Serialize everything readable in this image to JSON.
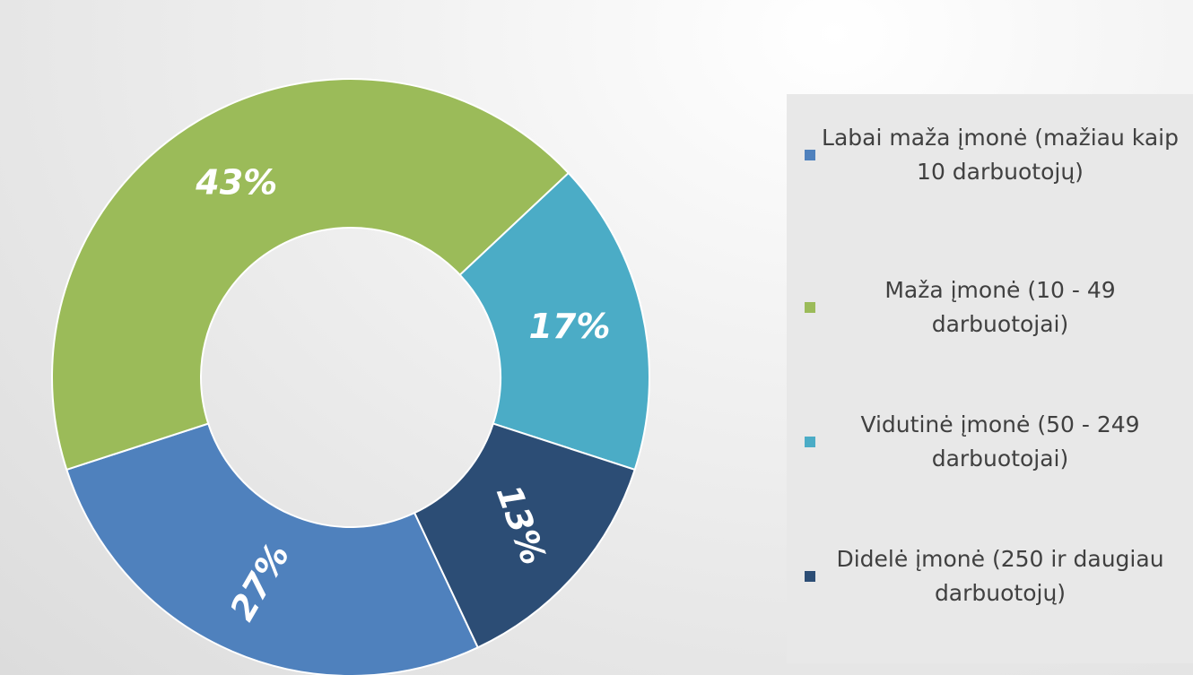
{
  "chart_data": {
    "type": "donut",
    "categories": [
      "Labai maža įmonė (mažiau kaip 10 darbuotojų)",
      "Maža įmonė (10 - 49 darbuotojai)",
      "Vidutinė įmonė (50 - 249 darbuotojai)",
      "Didelė įmonė (250 ir daugiau darbuotojų)"
    ],
    "values": [
      27,
      43,
      17,
      13
    ],
    "value_labels": [
      "27%",
      "43%",
      "17%",
      "13%"
    ],
    "colors": [
      "#4f81bd",
      "#9bbb59",
      "#4bacc6",
      "#2c4d75"
    ],
    "start_angle": 154.8,
    "legend": "right"
  }
}
